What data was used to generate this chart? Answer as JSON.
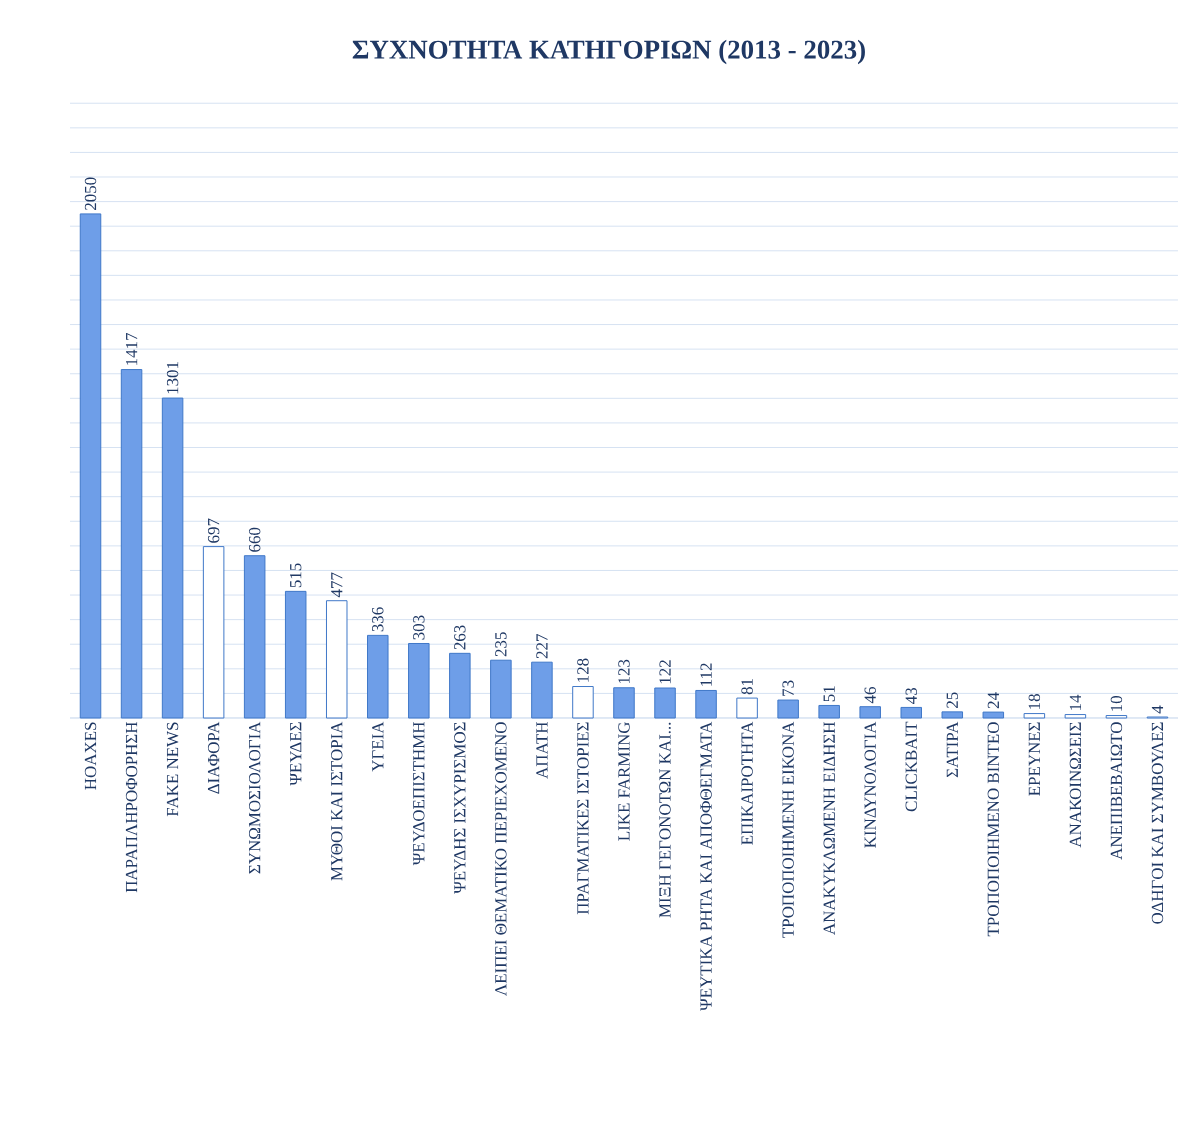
{
  "chart_data": {
    "type": "bar",
    "title": "ΣΥΧΝΟΤΗΤΑ ΚΑΤΗΓΟΡΙΩΝ (2013 - 2023)",
    "categories": [
      "HOAXES",
      "ΠΑΡΑΠΛΗΡΟΦΟΡΗΣΗ",
      "FAKE NEWS",
      "ΔΙΑΦΟΡΑ",
      "ΣΥΝΩΜΟΣΙΟΛΟΓΙΑ",
      "ΨΕΥΔΕΣ",
      "ΜΥΘΟΙ ΚΑΙ ΙΣΤΟΡΙΑ",
      "ΥΓΕΙΑ",
      "ΨΕΥΔΟΕΠΙΣΤΗΜΗ",
      "ΨΕΥΔΗΣ ΙΣΧΥΡΙΣΜΟΣ",
      "ΛΕΙΠΕΙ ΘΕΜΑΤΙΚΟ ΠΕΡΙΕΧΟΜΕΝΟ",
      "ΑΠΑΤΗ",
      "ΠΡΑΓΜΑΤΙΚΕΣ ΙΣΤΟΡΙΕΣ",
      "LIKE FARMING",
      "ΜΙΞΗ ΓΕΓΟΝΟΤΩΝ ΚΑΙ...",
      "ΨΕΥΤΙΚΑ ΡΗΤΑ ΚΑΙ ΑΠΟΦΘΕΓΜΑΤΑ",
      "ΕΠΙΚΑΙΡΟΤΗΤΑ",
      "ΤΡΟΠΟΠΟΙΗΜΕΝΗ ΕΙΚΟΝΑ",
      "ΑΝΑΚΥΚΛΩΜΕΝΗ ΕΙΔΗΣΗ",
      "ΚΙΝΔΥΝΟΛΟΓΙΑ",
      "CLICKBAIT",
      "ΣΑΤΙΡΑ",
      "ΤΡΟΠΟΠΟΙΗΜΕΝΟ ΒΙΝΤΕΟ",
      "ΕΡΕΥΝΕΣ",
      "ΑΝΑΚΟΙΝΩΣΕΙΣ",
      "ΑΝΕΠΙΒΕΒΑΙΩΤΟ",
      "ΟΔΗΓΟΙ ΚΑΙ ΣΥΜΒΟΥΛΕΣ"
    ],
    "values": [
      2050,
      1417,
      1301,
      697,
      660,
      515,
      477,
      336,
      303,
      263,
      235,
      227,
      128,
      123,
      122,
      112,
      81,
      73,
      51,
      46,
      43,
      25,
      24,
      18,
      14,
      10,
      4
    ],
    "colors": [
      "#6e9ee8",
      "#6e9ee8",
      "#6e9ee8",
      "#ffffff",
      "#6e9ee8",
      "#6e9ee8",
      "#ffffff",
      "#6e9ee8",
      "#6e9ee8",
      "#6e9ee8",
      "#6e9ee8",
      "#6e9ee8",
      "#ffffff",
      "#6e9ee8",
      "#6e9ee8",
      "#6e9ee8",
      "#ffffff",
      "#6e9ee8",
      "#6e9ee8",
      "#6e9ee8",
      "#6e9ee8",
      "#6e9ee8",
      "#6e9ee8",
      "#ffffff",
      "#ffffff",
      "#ffffff",
      "#ffffff"
    ],
    "tick_labels": "x",
    "grid": "y",
    "data_labels": true
  }
}
